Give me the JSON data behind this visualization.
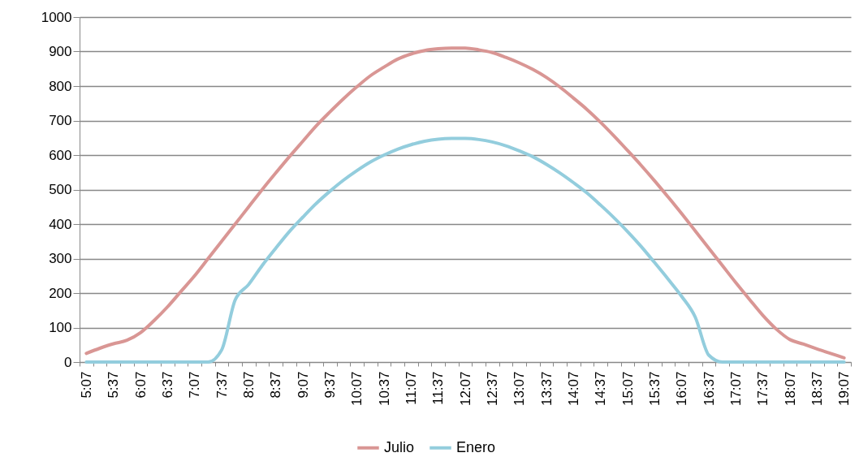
{
  "chart_data": {
    "type": "line",
    "categories": [
      "5:07",
      null,
      "5:37",
      null,
      "6:07",
      null,
      "6:37",
      null,
      "7:07",
      null,
      "7:37",
      null,
      "8:07",
      null,
      "8:37",
      null,
      "9:07",
      null,
      "9:37",
      null,
      "10:07",
      null,
      "10:37",
      null,
      "11:07",
      null,
      "11:37",
      null,
      "12:07",
      null,
      "12:37",
      null,
      "13:07",
      null,
      "13:37",
      null,
      "14:07",
      null,
      "14:37",
      null,
      "15:07",
      null,
      "15:37",
      null,
      "16:07",
      null,
      "16:37",
      null,
      "17:07",
      null,
      "17:37",
      null,
      "18:07",
      null,
      "18:37",
      null,
      "19:07"
    ],
    "series": [
      {
        "name": "Julio",
        "color": "#d99694",
        "values": [
          25,
          40,
          53,
          63,
          85,
          120,
          160,
          205,
          250,
          300,
          350,
          400,
          450,
          500,
          548,
          595,
          640,
          685,
          725,
          763,
          798,
          830,
          855,
          878,
          893,
          903,
          908,
          910,
          910,
          905,
          897,
          883,
          867,
          848,
          825,
          797,
          765,
          732,
          695,
          655,
          613,
          570,
          525,
          478,
          430,
          380,
          330,
          280,
          230,
          182,
          135,
          95,
          65,
          52,
          38,
          25,
          12
        ]
      },
      {
        "name": "Enero",
        "color": "#93cddd",
        "values": [
          0,
          0,
          0,
          0,
          0,
          0,
          0,
          0,
          0,
          0,
          35,
          180,
          225,
          280,
          330,
          378,
          420,
          460,
          495,
          527,
          555,
          580,
          600,
          617,
          630,
          640,
          646,
          648,
          648,
          645,
          638,
          627,
          612,
          595,
          573,
          548,
          520,
          490,
          455,
          418,
          378,
          335,
          288,
          240,
          190,
          130,
          20,
          0,
          0,
          0,
          0,
          0,
          0,
          0,
          0,
          0,
          0
        ]
      }
    ],
    "ylim": [
      0,
      1000
    ],
    "yticks": [
      0,
      100,
      200,
      300,
      400,
      500,
      600,
      700,
      800,
      900,
      1000
    ],
    "grid": "y",
    "legend": "bottom",
    "line_style": "solid",
    "marker": "none"
  }
}
